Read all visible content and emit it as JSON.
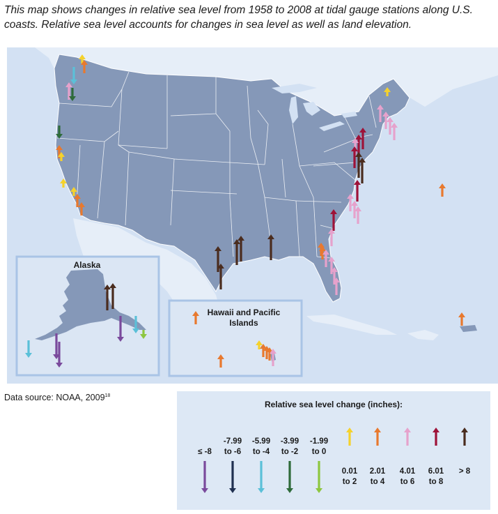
{
  "caption": "This map shows changes in relative sea level from 1958 to 2008 at tidal gauge stations along U.S. coasts. Relative sea level accounts for changes in sea level as well as land elevation.",
  "map": {
    "inset_alaska_title": "Alaska",
    "inset_hawaii_title_line1": "Hawaii and Pacific",
    "inset_hawaii_title_line2": "Islands"
  },
  "source": {
    "text": "Data source: NOAA, 2009",
    "footnote": "18"
  },
  "legend": {
    "title": "Relative sea level change (inches):",
    "categories": [
      {
        "line1": "≤ -8",
        "line2": "",
        "color": "#7a4a9c",
        "direction": "down"
      },
      {
        "line1": "-7.99",
        "line2": "to -6",
        "color": "#1f3050",
        "direction": "down"
      },
      {
        "line1": "-5.99",
        "line2": "to -4",
        "color": "#5bc0d8",
        "direction": "down"
      },
      {
        "line1": "-3.99",
        "line2": "to -2",
        "color": "#2e6b3a",
        "direction": "down"
      },
      {
        "line1": "-1.99",
        "line2": "to 0",
        "color": "#8dc63f",
        "direction": "down"
      },
      {
        "line1": "0.01",
        "line2": "to 2",
        "color": "#f5d22c",
        "direction": "up"
      },
      {
        "line1": "2.01",
        "line2": "to 4",
        "color": "#e8792e",
        "direction": "up"
      },
      {
        "line1": "4.01",
        "line2": "to 6",
        "color": "#e6a2cc",
        "direction": "up"
      },
      {
        "line1": "6.01",
        "line2": "to 8",
        "color": "#9e1238",
        "direction": "up"
      },
      {
        "line1": "> 8",
        "line2": "",
        "color": "#4a2c1e",
        "direction": "up"
      }
    ]
  },
  "stations": [
    {
      "cat": 5,
      "value": 1.0
    },
    {
      "cat": 6,
      "value": 3.0
    },
    {
      "cat": 2,
      "value": -5.0
    },
    {
      "cat": 7,
      "value": 5.0
    },
    {
      "cat": 3,
      "value": -3.0
    },
    {
      "cat": 3,
      "value": -3.0
    },
    {
      "cat": 6,
      "value": 3.0
    },
    {
      "cat": 5,
      "value": 1.0
    },
    {
      "cat": 5,
      "value": 1.0
    },
    {
      "cat": 5,
      "value": 1.0
    },
    {
      "cat": 6,
      "value": 3.0
    },
    {
      "cat": 6,
      "value": 3.0
    },
    {
      "cat": 6,
      "value": 3.0
    },
    {
      "cat": 5,
      "value": 1.0
    },
    {
      "cat": 7,
      "value": 5.0
    },
    {
      "cat": 7,
      "value": 5.0
    },
    {
      "cat": 7,
      "value": 5.0
    },
    {
      "cat": 7,
      "value": 5.0
    },
    {
      "cat": 8,
      "value": 7.0
    },
    {
      "cat": 8,
      "value": 7.0
    },
    {
      "cat": 7,
      "value": 5.0
    },
    {
      "cat": 8,
      "value": 7.0
    },
    {
      "cat": 9,
      "value": 9.0
    },
    {
      "cat": 9,
      "value": 9.0
    },
    {
      "cat": 8,
      "value": 7.0
    },
    {
      "cat": 7,
      "value": 5.0
    },
    {
      "cat": 7,
      "value": 5.0
    },
    {
      "cat": 7,
      "value": 5.0
    },
    {
      "cat": 8,
      "value": 7.0
    },
    {
      "cat": 7,
      "value": 5.0
    },
    {
      "cat": 6,
      "value": 3.0
    },
    {
      "cat": 6,
      "value": 3.0
    },
    {
      "cat": 7,
      "value": 5.0
    },
    {
      "cat": 7,
      "value": 5.0
    },
    {
      "cat": 7,
      "value": 5.0
    },
    {
      "cat": 7,
      "value": 5.0
    },
    {
      "cat": 9,
      "value": 9.0
    },
    {
      "cat": 9,
      "value": 9.0
    },
    {
      "cat": 9,
      "value": 9.0
    },
    {
      "cat": 9,
      "value": 9.0
    },
    {
      "cat": 9,
      "value": 9.0
    },
    {
      "cat": 6,
      "value": 3.0
    },
    {
      "cat": 6,
      "value": 3.0
    },
    {
      "cat": 9,
      "value": 9.0
    },
    {
      "cat": 9,
      "value": 9.0
    },
    {
      "cat": 0,
      "value": -9.0
    },
    {
      "cat": 0,
      "value": -9.0
    },
    {
      "cat": 0,
      "value": -9.0
    },
    {
      "cat": 2,
      "value": -5.0
    },
    {
      "cat": 4,
      "value": -1.0
    },
    {
      "cat": 2,
      "value": -5.0
    },
    {
      "cat": 6,
      "value": 3.0
    },
    {
      "cat": 5,
      "value": 1.0
    },
    {
      "cat": 6,
      "value": 3.0
    },
    {
      "cat": 6,
      "value": 3.0
    },
    {
      "cat": 6,
      "value": 3.0
    },
    {
      "cat": 7,
      "value": 5.0
    }
  ]
}
